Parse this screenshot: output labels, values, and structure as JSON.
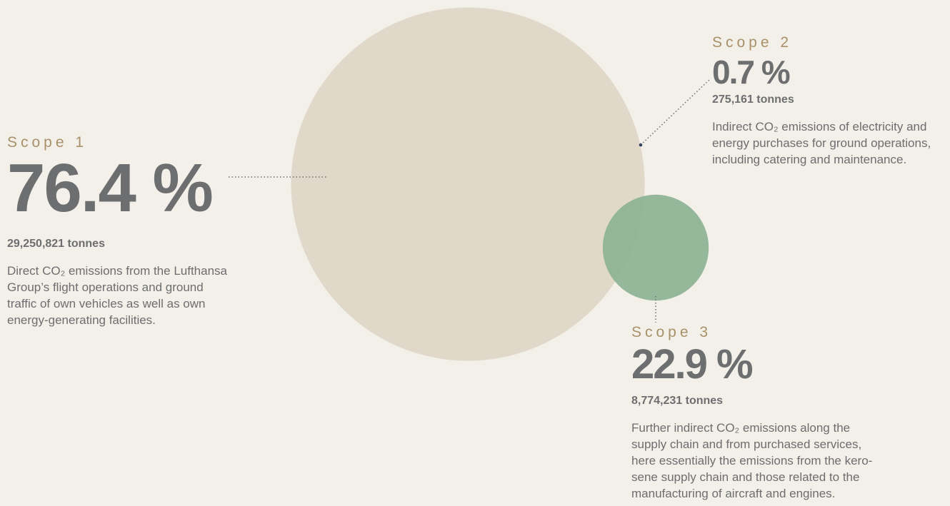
{
  "chart_data": {
    "type": "bubble",
    "categories": [
      "Scope 1",
      "Scope 2",
      "Scope 3"
    ],
    "values": [
      76.4,
      0.7,
      22.9
    ],
    "value_labels": [
      "76.4 %",
      "0.7 %",
      "22.9 %"
    ],
    "tonnes": [
      29250821,
      275161,
      8774231
    ],
    "tonnes_labels": [
      "29,250,821 tonnes",
      "275,161 tonnes",
      "8,774,231 tonnes"
    ],
    "descriptions": [
      "Direct CO₂ emissions from the Lufthansa Group’s flight operations and ground traffic of own vehicles as well as own energy-generating facilities.",
      "Indirect CO₂ emissions of electricity and energy purchases for ground operations, including catering and maintenance.",
      "Further indirect CO₂ emissions along the supply chain and from purchased services, here essentially the emissions from the kero-sene supply chain and those related to the manufacturing of aircraft and engines."
    ],
    "colors": [
      "#e0d9c9",
      "#2a3a5c",
      "#8db394"
    ]
  }
}
